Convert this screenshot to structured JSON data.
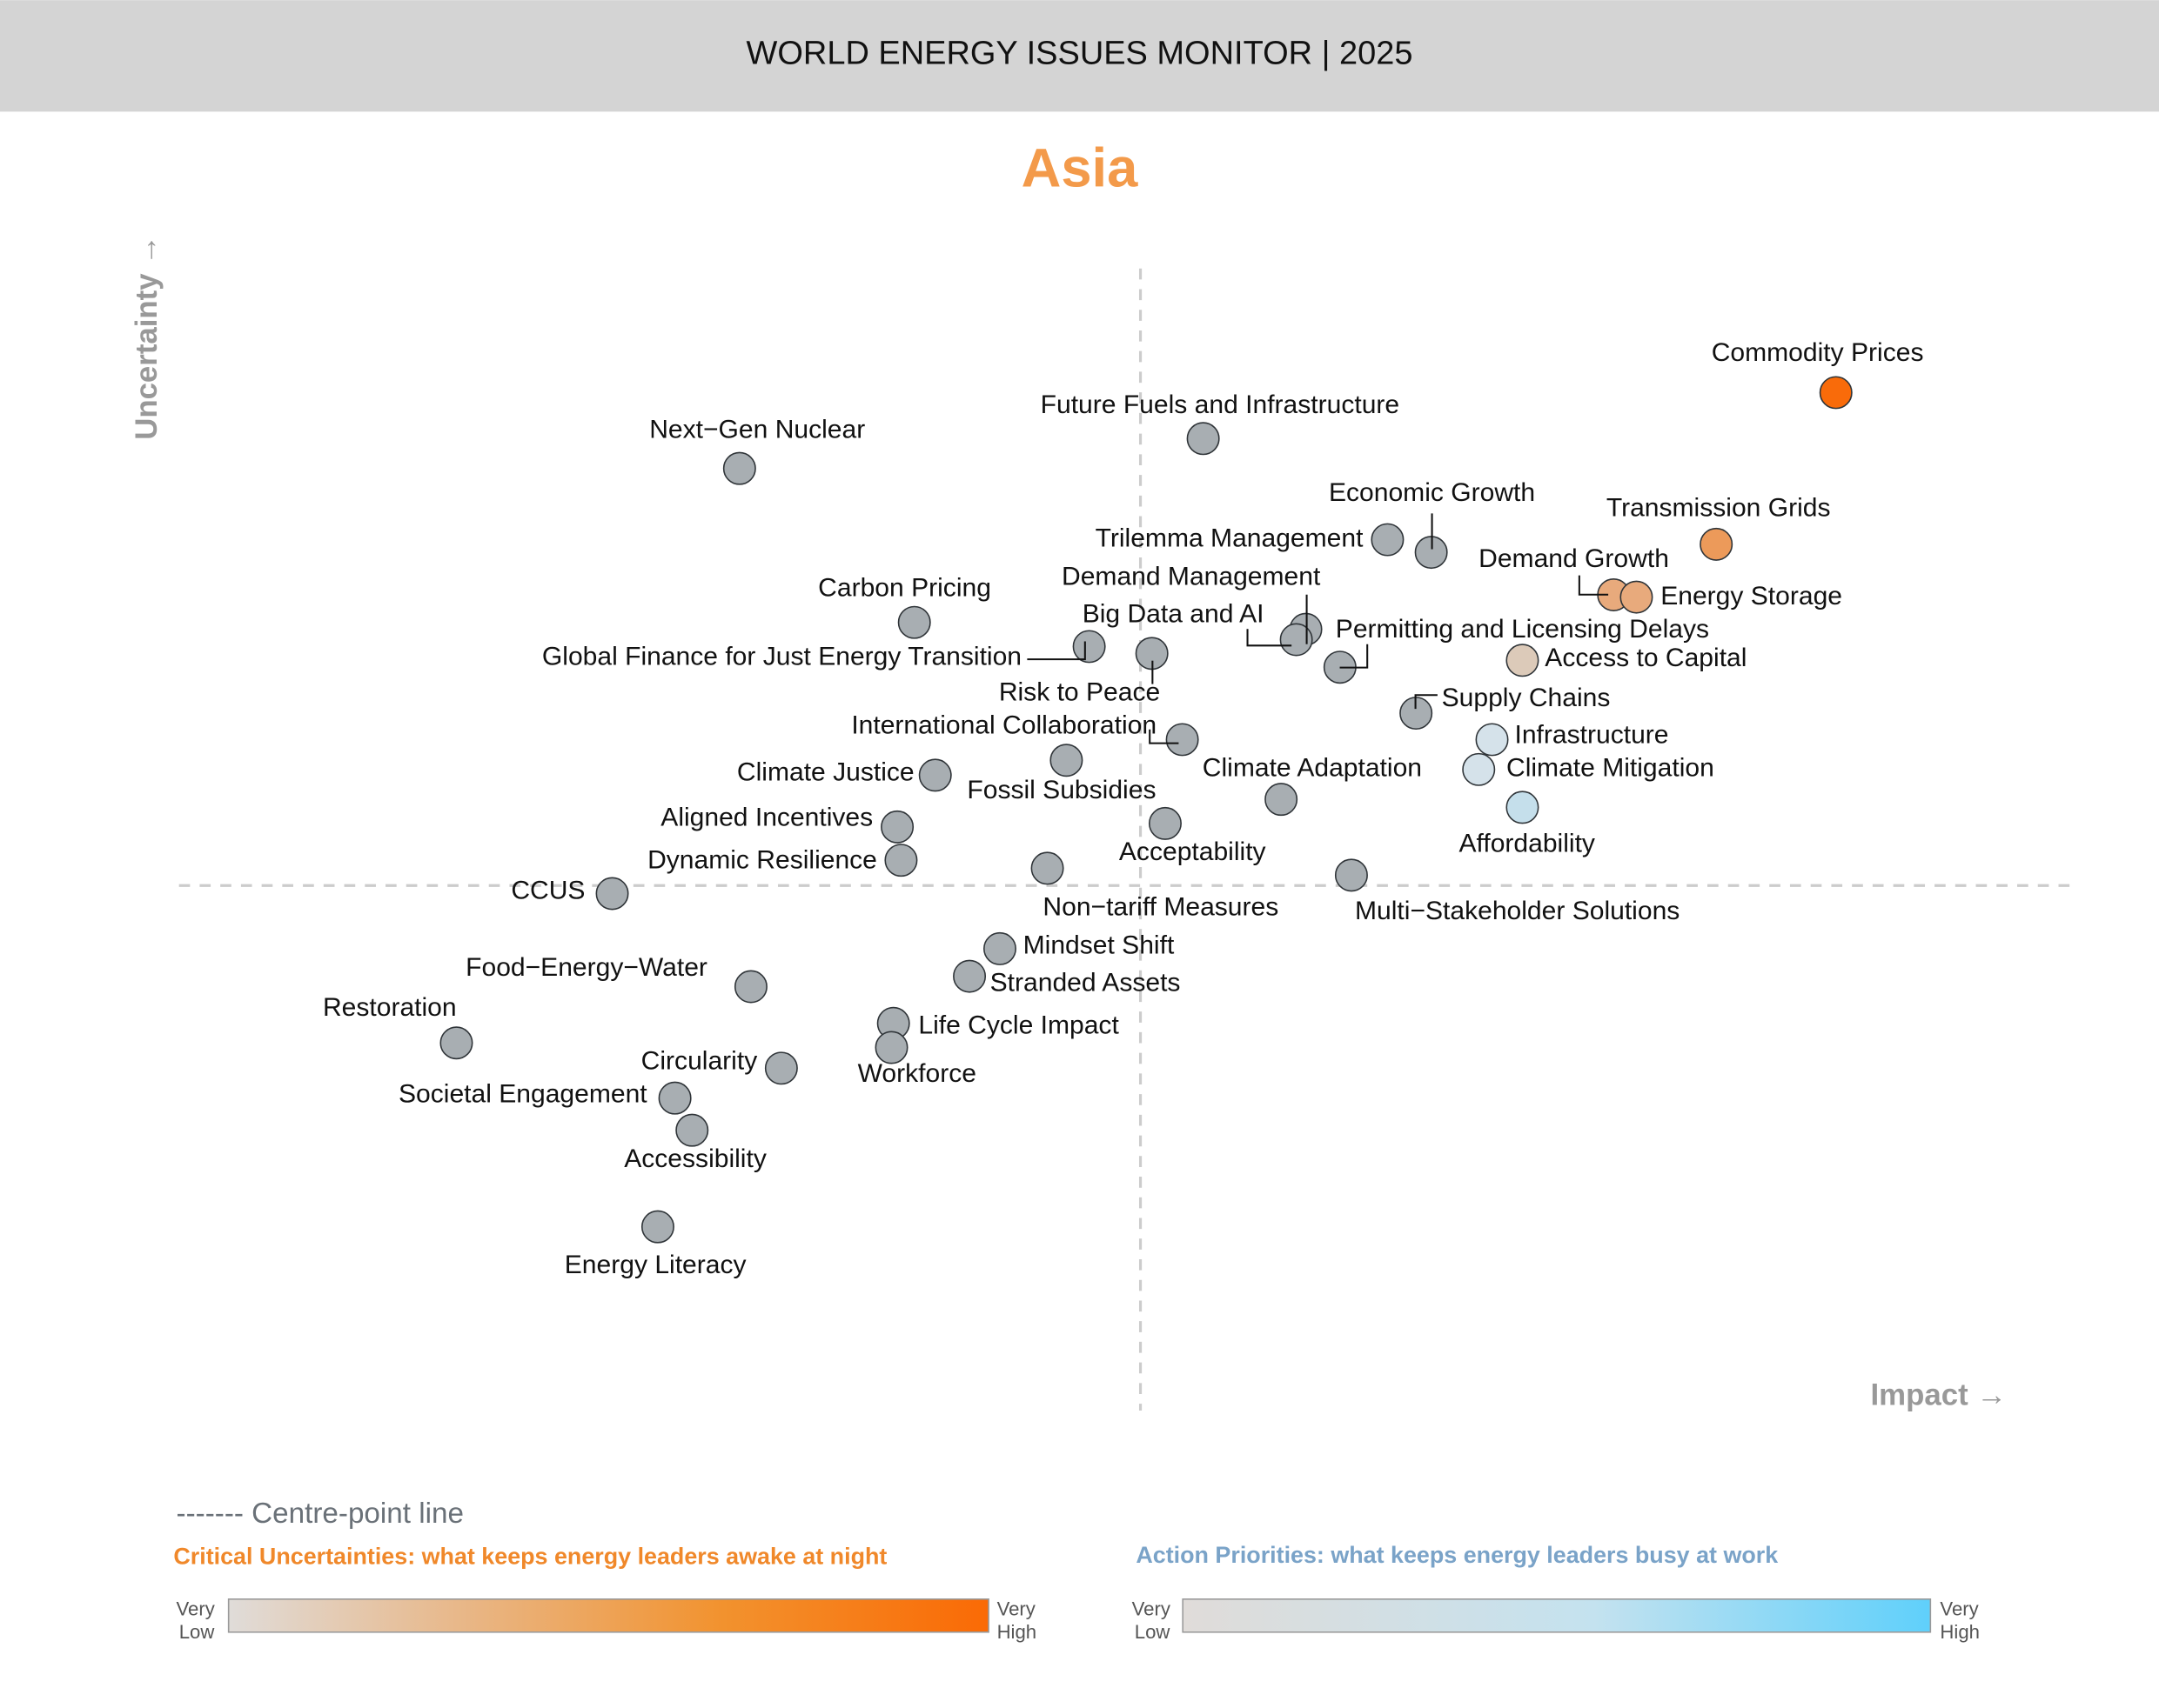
{
  "header": {
    "title": "WORLD ENERGY ISSUES MONITOR | 2025"
  },
  "chart_data": {
    "type": "scatter",
    "title": "Asia",
    "xlabel": "Impact →",
    "ylabel": "Uncertainty →",
    "xlim": [
      0,
      10
    ],
    "ylim": [
      0,
      10
    ],
    "grid": false,
    "centre_point": {
      "impact": 5.06,
      "uncertainty": 4.57
    },
    "colors": {
      "title": "#f39a4a",
      "neutral": "#a8aeb2",
      "critical_high": "#fa6a05",
      "action_high": "#5fd0fb"
    },
    "points": [
      {
        "label": "Commodity Prices",
        "impact": 8.72,
        "uncertainty": 8.86,
        "color": "#f96b0a"
      },
      {
        "label": "Future Fuels and Infrastructure",
        "impact": 5.39,
        "uncertainty": 8.46,
        "color": "#a8aeb2"
      },
      {
        "label": "Next-Gen Nuclear",
        "impact": 2.95,
        "uncertainty": 8.2,
        "color": "#a8aeb2"
      },
      {
        "label": "Economic Growth",
        "impact": 6.59,
        "uncertainty": 7.47,
        "color": "#a8aeb2"
      },
      {
        "label": "Trilemma Management",
        "impact": 6.36,
        "uncertainty": 7.58,
        "color": "#a8aeb2"
      },
      {
        "label": "Transmission Grids",
        "impact": 8.09,
        "uncertainty": 7.54,
        "color": "#ec9a5a"
      },
      {
        "label": "Demand Growth",
        "impact": 7.55,
        "uncertainty": 7.1,
        "color": "#e8aa7c"
      },
      {
        "label": "Energy Storage",
        "impact": 7.67,
        "uncertainty": 7.08,
        "color": "#e8aa7c"
      },
      {
        "label": "Carbon Pricing",
        "impact": 3.87,
        "uncertainty": 6.86,
        "color": "#a8aeb2"
      },
      {
        "label": "Demand Management",
        "impact": 5.93,
        "uncertainty": 6.8,
        "color": "#a8aeb2"
      },
      {
        "label": "Big Data and AI",
        "impact": 5.88,
        "uncertainty": 6.71,
        "color": "#a8aeb2"
      },
      {
        "label": "Global Finance for Just Energy Transition",
        "impact": 4.79,
        "uncertainty": 6.65,
        "color": "#a8aeb2"
      },
      {
        "label": "Risk to Peace",
        "impact": 5.12,
        "uncertainty": 6.59,
        "color": "#a8aeb2"
      },
      {
        "label": "Permitting and Licensing Delays",
        "impact": 6.11,
        "uncertainty": 6.47,
        "color": "#a8aeb2"
      },
      {
        "label": "Access to Capital",
        "impact": 7.07,
        "uncertainty": 6.53,
        "color": "#dccab9"
      },
      {
        "label": "Supply Chains",
        "impact": 6.51,
        "uncertainty": 6.07,
        "color": "#a8aeb2"
      },
      {
        "label": "Infrastructure",
        "impact": 6.91,
        "uncertainty": 5.84,
        "color": "#d5e2ea"
      },
      {
        "label": "International Collaboration",
        "impact": 5.28,
        "uncertainty": 5.84,
        "color": "#a8aeb2"
      },
      {
        "label": "Climate Adaptation",
        "impact": 5.8,
        "uncertainty": 5.32,
        "color": "#a8aeb2"
      },
      {
        "label": "Climate Mitigation",
        "impact": 6.84,
        "uncertainty": 5.58,
        "color": "#d5e2ea"
      },
      {
        "label": "Climate Justice",
        "impact": 3.98,
        "uncertainty": 5.53,
        "color": "#a8aeb2"
      },
      {
        "label": "Fossil Subsidies",
        "impact": 4.67,
        "uncertainty": 5.66,
        "color": "#a8aeb2"
      },
      {
        "label": "Affordability",
        "impact": 7.07,
        "uncertainty": 5.25,
        "color": "#c5dfeb"
      },
      {
        "label": "Aligned Incentives",
        "impact": 3.78,
        "uncertainty": 5.08,
        "color": "#a8aeb2"
      },
      {
        "label": "Acceptability",
        "impact": 5.19,
        "uncertainty": 5.11,
        "color": "#a8aeb2"
      },
      {
        "label": "Dynamic Resilience",
        "impact": 3.8,
        "uncertainty": 4.79,
        "color": "#a8aeb2"
      },
      {
        "label": "Non-tariff Measures",
        "impact": 4.57,
        "uncertainty": 4.72,
        "color": "#a8aeb2"
      },
      {
        "label": "Multi-Stakeholder Solutions",
        "impact": 6.17,
        "uncertainty": 4.66,
        "color": "#a8aeb2"
      },
      {
        "label": "CCUS",
        "impact": 2.28,
        "uncertainty": 4.5,
        "color": "#a8aeb2"
      },
      {
        "label": "Mindset Shift",
        "impact": 4.32,
        "uncertainty": 4.02,
        "color": "#a8aeb2"
      },
      {
        "label": "Food-Energy-Water",
        "impact": 3.01,
        "uncertainty": 3.69,
        "color": "#a8aeb2"
      },
      {
        "label": "Stranded Assets",
        "impact": 4.16,
        "uncertainty": 3.78,
        "color": "#a8aeb2"
      },
      {
        "label": "Restoration",
        "impact": 1.46,
        "uncertainty": 3.2,
        "color": "#a8aeb2"
      },
      {
        "label": "Life Cycle Impact",
        "impact": 3.76,
        "uncertainty": 3.37,
        "color": "#a8aeb2"
      },
      {
        "label": "Workforce",
        "impact": 3.75,
        "uncertainty": 3.16,
        "color": "#a8aeb2"
      },
      {
        "label": "Circularity",
        "impact": 3.17,
        "uncertainty": 2.98,
        "color": "#a8aeb2"
      },
      {
        "label": "Societal Engagement",
        "impact": 2.61,
        "uncertainty": 2.72,
        "color": "#a8aeb2"
      },
      {
        "label": "Accessibility",
        "impact": 2.7,
        "uncertainty": 2.44,
        "color": "#a8aeb2"
      },
      {
        "label": "Energy Literacy",
        "impact": 2.52,
        "uncertainty": 1.6,
        "color": "#a8aeb2"
      }
    ]
  },
  "legend": {
    "centre_line": "------- Centre-point line",
    "critical": {
      "title": "Critical Uncertainties: what keeps energy leaders awake at night",
      "low": [
        "Very",
        "Low"
      ],
      "high": [
        "Very",
        "High"
      ],
      "from": "#e0dcd9",
      "to": "#fa6a05"
    },
    "action": {
      "title": "Action Priorities: what keeps energy leaders busy at work",
      "low": [
        "Very",
        "Low"
      ],
      "high": [
        "Very",
        "High"
      ],
      "from": "#e0dcd9",
      "to": "#5fd0fb"
    }
  }
}
